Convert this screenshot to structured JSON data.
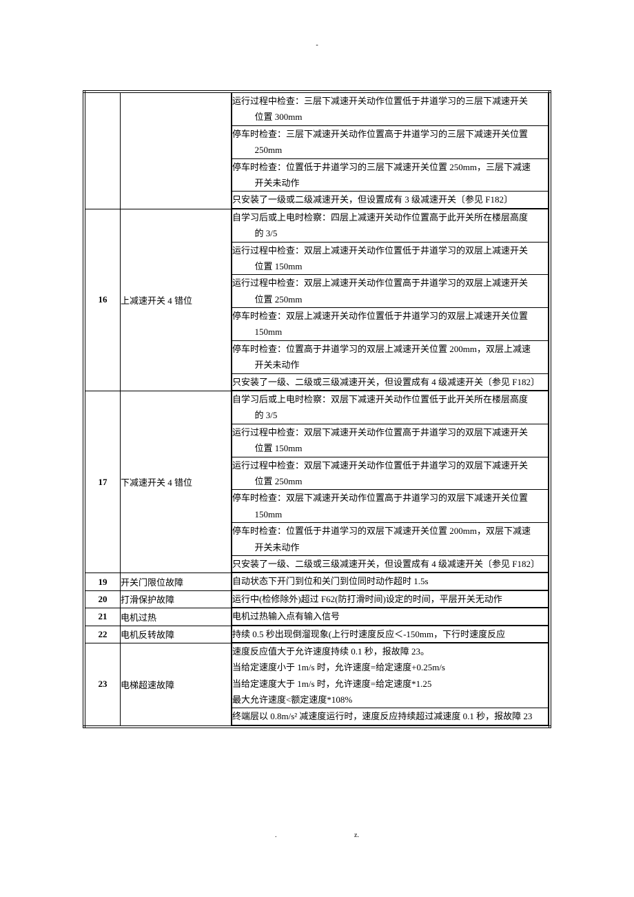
{
  "page": {
    "top_mark": "-",
    "footer_left": ".",
    "footer_right": "z."
  },
  "rows": [
    {
      "id": "",
      "name": "",
      "descs": [
        {
          "main": "运行过程中检查：三层下减速开关动作位置低于井道学习的三层下减速开关",
          "sub": "位置 300mm"
        },
        {
          "main": "停车时检查：三层下减速开关动作位置高于井道学习的三层下减速开关位置",
          "sub": "250mm"
        },
        {
          "main": "停车时检查：位置低于井道学习的三层下减速开关位置 250mm，三层下减速",
          "sub": "开关未动作"
        },
        {
          "main": "只安装了一级或二级减速开关，但设置成有 3 级减速开关〔参见 F182〕"
        }
      ]
    },
    {
      "id": "16",
      "name": "上减速开关 4 错位",
      "descs": [
        {
          "main": "自学习后或上电时检察：四层上减速开关动作位置高于此开关所在楼层高度",
          "sub": "的 3/5"
        },
        {
          "main": "运行过程中检查：双层上减速开关动作位置低于井道学习的双层上减速开关",
          "sub": "位置 150mm"
        },
        {
          "main": "运行过程中检查：双层上减速开关动作位置高于井道学习的双层上减速开关",
          "sub": "位置 250mm"
        },
        {
          "main": "停车时检查：双层上减速开关动作位置低于井道学习的双层上减速开关位置",
          "sub": "150mm"
        },
        {
          "main": "停车时检查：位置高于井道学习的双层上减速开关位置 200mm，双层上减速",
          "sub": "开关未动作"
        },
        {
          "main": "只安装了一级、二级或三级减速开关，但设置成有 4 级减速开关〔参见 F182〕"
        }
      ]
    },
    {
      "id": "17",
      "name": "下减速开关 4 错位",
      "descs": [
        {
          "main": "自学习后或上电时检察：双层下减速开关动作位置低于此开关所在楼层高度",
          "sub": "的 3/5"
        },
        {
          "main": "运行过程中检查：双层下减速开关动作位置高于井道学习的双层下减速开关",
          "sub": "位置 150mm"
        },
        {
          "main": "运行过程中检查：双层下减速开关动作位置低于井道学习的双层下减速开关",
          "sub": "位置 250mm"
        },
        {
          "main": "停车时检查：双层下减速开关动作位置高于井道学习的双层下减速开关位置",
          "sub": "150mm"
        },
        {
          "main": "停车时检查：位置低于井道学习的双层下减速开关位置 200mm，双层下减速",
          "sub": "开关未动作"
        },
        {
          "main": "只安装了一级、二级或三级减速开关，但设置成有 4 级减速开关〔参见 F182〕"
        }
      ]
    },
    {
      "id": "19",
      "name": "开关门限位故障",
      "descs": [
        {
          "main": "自动状态下开门到位和关门到位同时动作超时 1.5s"
        }
      ]
    },
    {
      "id": "20",
      "name": "打滑保护故障",
      "descs": [
        {
          "main": "运行中(检修除外)超过 F62(防打滑时间)设定的时间，平层开关无动作"
        }
      ]
    },
    {
      "id": "21",
      "name": "电机过热",
      "descs": [
        {
          "main": "电机过热输入点有输入信号"
        }
      ]
    },
    {
      "id": "22",
      "name": "电机反转故障",
      "descs": [
        {
          "main": "持续 0.5 秒出现倒溜现象(上行时速度反应＜-150mm，下行时速度反应"
        }
      ]
    },
    {
      "id": "23",
      "name": "电梯超速故障",
      "descs": [
        {
          "main": "速度反应值大于允许速度持续 0.1 秒，报故障 23。\n当给定速度小于 1m/s 时，允许速度=给定速度+0.25m/s\n当给定速度大于 1m/s 时，允许速度=给定速度*1.25\n最大允许速度<额定速度*108%"
        },
        {
          "main": "终端层以 0.8m/s² 减速度运行时，速度反应持续超过减速度 0.1 秒，报故障 23"
        }
      ]
    }
  ]
}
